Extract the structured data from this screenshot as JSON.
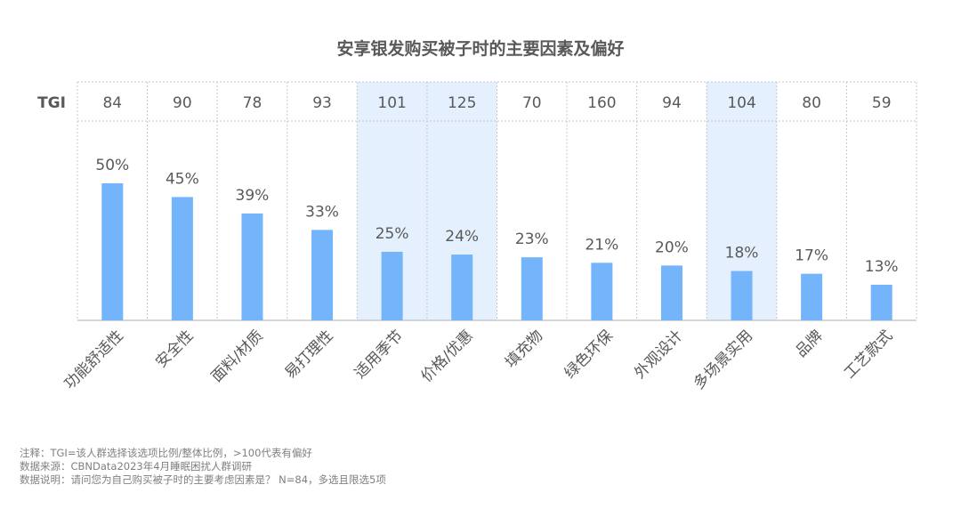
{
  "chart_data": {
    "type": "bar",
    "title": "安享银发购买被子时的主要因素及偏好",
    "tgi_label": "TGI",
    "categories": [
      "功能舒适性",
      "安全性",
      "面料/材质",
      "易打理性",
      "适用季节",
      "价格/优惠",
      "填充物",
      "绿色环保",
      "外观设计",
      "多场景实用",
      "品牌",
      "工艺款式"
    ],
    "values": [
      50,
      45,
      39,
      33,
      25,
      24,
      23,
      21,
      20,
      18,
      17,
      13
    ],
    "value_labels": [
      "50%",
      "45%",
      "39%",
      "33%",
      "25%",
      "24%",
      "23%",
      "21%",
      "20%",
      "18%",
      "17%",
      "13%"
    ],
    "tgi": [
      "84",
      "90",
      "78",
      "93",
      "101",
      "125",
      "70",
      "160",
      "94",
      "104",
      "80",
      "59"
    ],
    "highlighted": [
      false,
      false,
      false,
      false,
      true,
      true,
      false,
      false,
      false,
      true,
      false,
      false
    ],
    "bar_color": "#74b4fa",
    "highlight_color": "#e4f0fd",
    "ylim": [
      0,
      100
    ]
  },
  "notes": {
    "line1": "注释：TGI=该人群选择该选项比例/整体比例，>100代表有偏好",
    "line2": "数据来源：CBNData2023年4月睡眠困扰人群调研",
    "line3": "数据说明：请问您为自己购买被子时的主要考虑因素是？ N=84，多选且限选5项"
  }
}
